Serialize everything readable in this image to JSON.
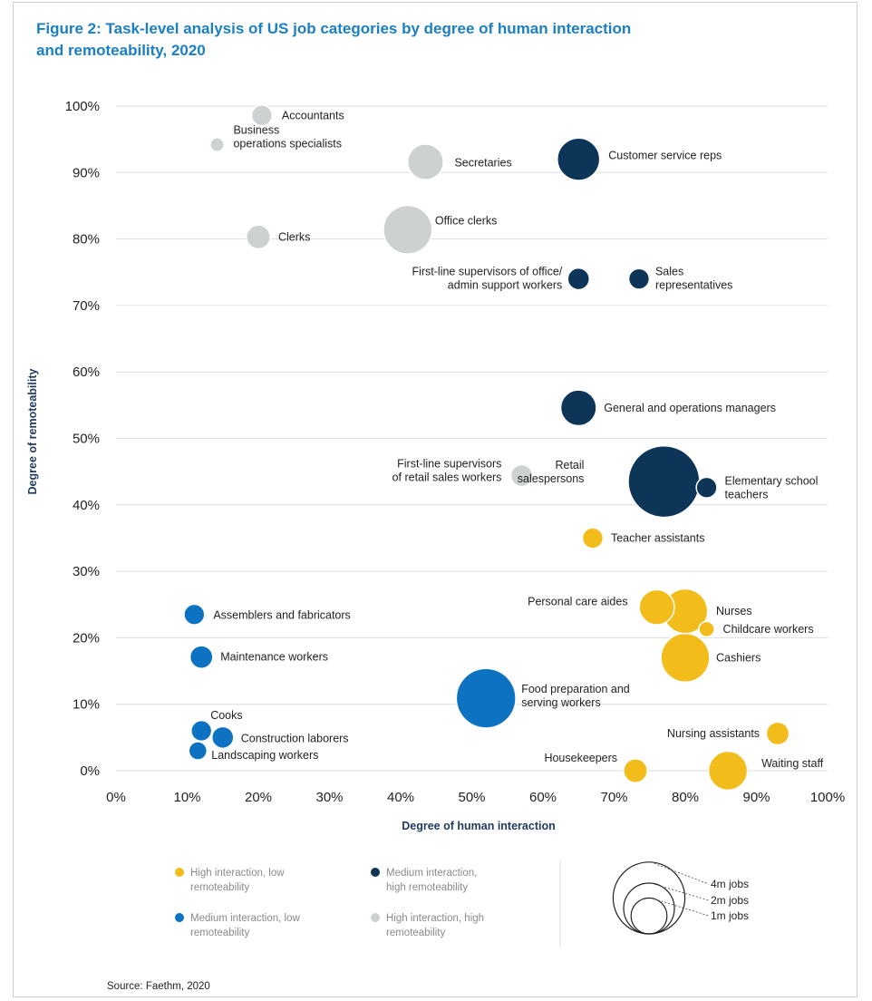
{
  "title_line1": "Figure 2: Task-level analysis of US job categories by degree of human interaction",
  "title_line2": "and remoteability, 2020",
  "source": "Source: Faethm, 2020",
  "colors": {
    "high_low": "#f2bc1b",
    "medium_low": "#0d72c2",
    "medium_high": "#0d3558",
    "high_high": "#cdd1d1",
    "grid": "#dddddd"
  },
  "chart_data": {
    "type": "scatter",
    "title": "Figure 2: Task-level analysis of US job categories by degree of human interaction and remoteability, 2020",
    "xlabel": "Degree of human interaction",
    "ylabel": "Degree of remoteability",
    "xlim": [
      0,
      100
    ],
    "ylim": [
      0,
      100
    ],
    "grid": true,
    "x_ticks": [
      "0%",
      "10%",
      "20%",
      "30%",
      "40%",
      "50%",
      "60%",
      "70%",
      "80%",
      "90%",
      "100%"
    ],
    "y_ticks": [
      "0%",
      "10%",
      "20%",
      "30%",
      "40%",
      "50%",
      "60%",
      "70%",
      "80%",
      "90%",
      "100%"
    ],
    "size_unit": "jobs (millions)",
    "series": [
      {
        "name": "High interaction, low remoteability",
        "color_key": "high_low",
        "points": [
          {
            "label": "Teacher assistants",
            "x": 67,
            "y": 35,
            "size": 0.9
          },
          {
            "label": "Personal care aides",
            "x": 76,
            "y": 24.6,
            "size": 2.6
          },
          {
            "label": "Nurses",
            "x": 80,
            "y": 24,
            "size": 4.2
          },
          {
            "label": "Childcare workers",
            "x": 83,
            "y": 21.3,
            "size": 0.5
          },
          {
            "label": "Cashiers",
            "x": 80,
            "y": 17,
            "size": 5.0
          },
          {
            "label": "Nursing assistants",
            "x": 93,
            "y": 5.6,
            "size": 1.1
          },
          {
            "label": "Housekeepers",
            "x": 73,
            "y": 0,
            "size": 1.2
          },
          {
            "label": "Waiting staff",
            "x": 86,
            "y": 0,
            "size": 3.2
          }
        ]
      },
      {
        "name": "Medium interaction, low remoteability",
        "color_key": "medium_low",
        "points": [
          {
            "label": "Assemblers and fabricators",
            "x": 11,
            "y": 23.5,
            "size": 0.9
          },
          {
            "label": "Maintenance workers",
            "x": 12,
            "y": 17.1,
            "size": 1.1
          },
          {
            "label": "Food preparation and serving workers",
            "x": 52,
            "y": 10.9,
            "size": 7.5
          },
          {
            "label": "Cooks",
            "x": 12,
            "y": 6,
            "size": 0.9
          },
          {
            "label": "Construction laborers",
            "x": 15,
            "y": 5,
            "size": 1.0
          },
          {
            "label": "Landscaping workers",
            "x": 11.5,
            "y": 3,
            "size": 0.7
          }
        ]
      },
      {
        "name": "Medium interaction, high remoteability",
        "color_key": "medium_high",
        "points": [
          {
            "label": "Customer service reps",
            "x": 65,
            "y": 92,
            "size": 3.8
          },
          {
            "label": "First-line supervisors of office/ admin support workers",
            "x": 65,
            "y": 74,
            "size": 1.0
          },
          {
            "label": "Sales representatives",
            "x": 73.5,
            "y": 74,
            "size": 0.9
          },
          {
            "label": "General and operations managers",
            "x": 65,
            "y": 54.6,
            "size": 2.7
          },
          {
            "label": "Retail salespersons",
            "x": 77,
            "y": 43.5,
            "size": 10.8
          },
          {
            "label": "Elementary school teachers",
            "x": 83,
            "y": 42.6,
            "size": 0.9
          }
        ]
      },
      {
        "name": "High interaction, high remoteability",
        "color_key": "high_high",
        "points": [
          {
            "label": "Accountants",
            "x": 20.5,
            "y": 98.6,
            "size": 0.9
          },
          {
            "label": "Business operations specialists",
            "x": 14.2,
            "y": 94.2,
            "size": 0.4
          },
          {
            "label": "Secretaries",
            "x": 43.5,
            "y": 91.6,
            "size": 2.7
          },
          {
            "label": "Clerks",
            "x": 20,
            "y": 80.3,
            "size": 1.2
          },
          {
            "label": "Office clerks",
            "x": 41,
            "y": 81.4,
            "size": 5.0
          },
          {
            "label": "First-line supervisors of retail sales workers",
            "x": 57,
            "y": 44.4,
            "size": 1.0
          }
        ]
      }
    ],
    "size_legend": {
      "entries": [
        {
          "label": "4m jobs",
          "size": 4
        },
        {
          "label": "2m jobs",
          "size": 2
        },
        {
          "label": "1m jobs",
          "size": 1
        }
      ]
    }
  },
  "point_labels": [
    {
      "lines": [
        "Accountants"
      ]
    },
    {
      "lines": [
        "Business",
        "operations specialists"
      ]
    },
    {
      "lines": [
        "Secretaries"
      ]
    },
    {
      "lines": [
        "Customer service reps"
      ]
    },
    {
      "lines": [
        "Clerks"
      ]
    },
    {
      "lines": [
        "Office clerks"
      ]
    },
    {
      "lines": [
        "First-line supervisors of office/",
        "admin support workers"
      ]
    },
    {
      "lines": [
        "Sales",
        "representatives"
      ]
    },
    {
      "lines": [
        "General and operations managers"
      ]
    },
    {
      "lines": [
        "First-line supervisors",
        "of retail sales workers"
      ]
    },
    {
      "lines": [
        "Retail",
        "salespersons"
      ]
    },
    {
      "lines": [
        "Elementary school",
        "teachers"
      ]
    },
    {
      "lines": [
        "Teacher assistants"
      ]
    },
    {
      "lines": [
        "Personal care aides"
      ]
    },
    {
      "lines": [
        "Nurses"
      ]
    },
    {
      "lines": [
        "Childcare workers"
      ]
    },
    {
      "lines": [
        "Cashiers"
      ]
    },
    {
      "lines": [
        "Assemblers and fabricators"
      ]
    },
    {
      "lines": [
        "Maintenance workers"
      ]
    },
    {
      "lines": [
        "Food preparation and",
        "serving workers"
      ]
    },
    {
      "lines": [
        "Cooks"
      ]
    },
    {
      "lines": [
        "Construction laborers"
      ]
    },
    {
      "lines": [
        "Landscaping workers"
      ]
    },
    {
      "lines": [
        "Nursing assistants"
      ]
    },
    {
      "lines": [
        "Housekeepers"
      ]
    },
    {
      "lines": [
        "Waiting staff"
      ]
    }
  ],
  "legend": [
    {
      "lines": [
        "High interaction, low",
        "remoteability"
      ],
      "color_key": "high_low"
    },
    {
      "lines": [
        "Medium interaction,",
        "high remoteability"
      ],
      "color_key": "medium_high"
    },
    {
      "lines": [
        "Medium interaction, low",
        "remoteability"
      ],
      "color_key": "medium_low"
    },
    {
      "lines": [
        "High interaction, high",
        "remoteability"
      ],
      "color_key": "high_high"
    }
  ]
}
